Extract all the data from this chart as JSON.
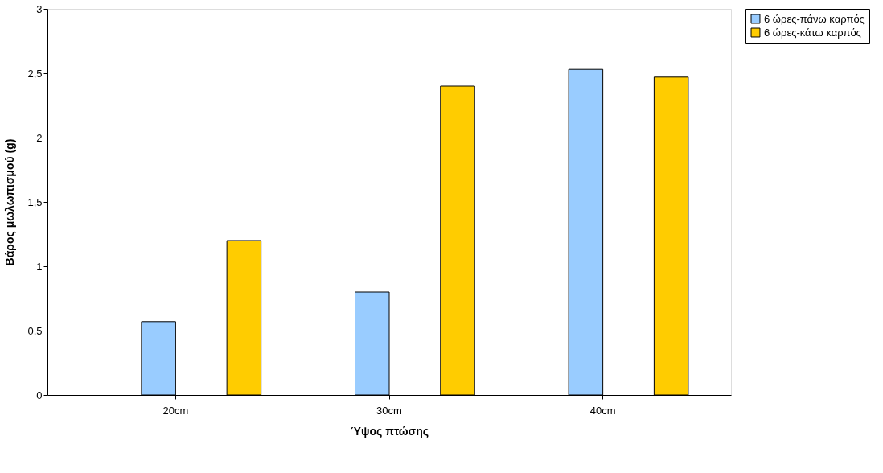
{
  "chart_data": {
    "type": "bar",
    "xlabel": "Ύψος πτώσης",
    "ylabel": "Βάρος μωλωπισμού (g)",
    "categories": [
      "20cm",
      "30cm",
      "40cm"
    ],
    "series": [
      {
        "name": "6 ώρες-πάνω καρπός",
        "color": "#99ccff",
        "values": [
          0.57,
          0.8,
          2.53
        ]
      },
      {
        "name": "6 ώρες-κάτω καρπός",
        "color": "#ffcc00",
        "values": [
          1.2,
          2.4,
          2.47
        ]
      }
    ],
    "ylim": [
      0,
      3
    ],
    "yticks": [
      0,
      {
        "value": 0.5,
        "label": "0,5"
      },
      1,
      {
        "value": 1.5,
        "label": "1,5"
      },
      2,
      {
        "value": 2.5,
        "label": "2,5"
      },
      3
    ],
    "grid": false,
    "legend": "right"
  }
}
